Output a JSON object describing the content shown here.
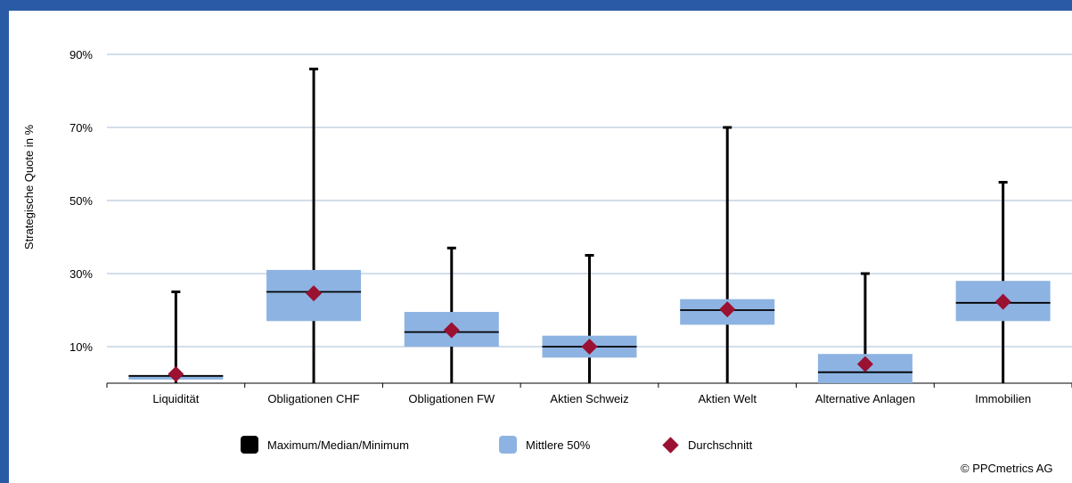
{
  "chart_data": {
    "type": "box",
    "ylabel": "Strategische Quote in %",
    "ylim": [
      0,
      100
    ],
    "y_ticks": [
      10,
      30,
      50,
      70,
      90
    ],
    "y_tick_labels": [
      "10%",
      "30%",
      "50%",
      "70%",
      "90%"
    ],
    "grid": true,
    "categories": [
      "Liquidität",
      "Obligationen CHF",
      "Obligationen FW",
      "Aktien Schweiz",
      "Aktien Welt",
      "Alternative Anlagen",
      "Immobilien"
    ],
    "boxes": [
      {
        "min": 0,
        "q1": 1,
        "median": 2,
        "q3": 2,
        "max": 25,
        "mean": 2.5
      },
      {
        "min": 0,
        "q1": 17,
        "median": 25,
        "q3": 31,
        "max": 86,
        "mean": 24.6
      },
      {
        "min": 0,
        "q1": 10,
        "median": 14,
        "q3": 19.5,
        "max": 37,
        "mean": 14.5
      },
      {
        "min": 0,
        "q1": 7,
        "median": 10,
        "q3": 13,
        "max": 35,
        "mean": 10
      },
      {
        "min": 0,
        "q1": 16,
        "median": 20,
        "q3": 23,
        "max": 70,
        "mean": 20.2
      },
      {
        "min": 0,
        "q1": 0,
        "median": 3,
        "q3": 8,
        "max": 30,
        "mean": 5.2
      },
      {
        "min": 0,
        "q1": 17,
        "median": 22,
        "q3": 28,
        "max": 55,
        "mean": 22.3
      }
    ],
    "legend": [
      "Maximum/Median/Minimum",
      "Mittlere 50%",
      "Durchschnitt"
    ],
    "legend_position": "bottom",
    "colors": {
      "whisker": "#000000",
      "box": "#8db3e2",
      "mean": "#9b1131",
      "grid": "#a6bcd6",
      "frame": "#2a5aa6"
    }
  },
  "copyright": "© PPCmetrics AG"
}
